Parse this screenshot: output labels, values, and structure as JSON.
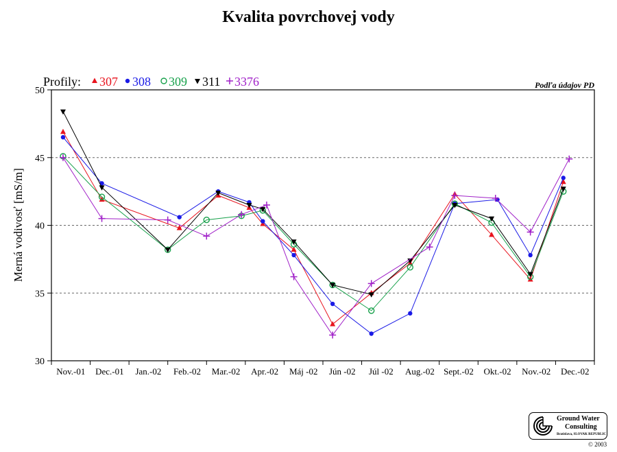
{
  "title": "Kvalita povrchovej vody",
  "source_note": "Podľa údajov PD",
  "legend": {
    "label": "Profily:",
    "entries": [
      {
        "name": "307",
        "color": "#e8141e",
        "marker": "triangle-up",
        "icon": "triangle-up-icon"
      },
      {
        "name": "308",
        "color": "#1a1ae6",
        "marker": "filled-circle",
        "icon": "circle-filled-icon"
      },
      {
        "name": "309",
        "color": "#16a04a",
        "marker": "open-circle",
        "icon": "circle-open-icon"
      },
      {
        "name": "311",
        "color": "#000000",
        "marker": "triangle-down",
        "icon": "triangle-down-icon"
      },
      {
        "name": "3376",
        "color": "#a020c8",
        "marker": "plus",
        "icon": "plus-icon"
      }
    ]
  },
  "chart_data": {
    "type": "line",
    "title": "Kvalita povrchovej vody",
    "xlabel": "",
    "ylabel": "Merná vodivosť [mS/m]",
    "ylim": [
      30,
      50
    ],
    "yticks": [
      30,
      35,
      40,
      45,
      50
    ],
    "grid": "horizontal dashed at 35, 40, 45",
    "legend_position": "top-left",
    "categories": [
      "Nov.-01",
      "Dec.-01",
      "Jan.-02",
      "Feb.-02",
      "Mar.-02",
      "Apr.-02",
      "Máj -02",
      "Jún -02",
      "Júl -02",
      "Aug.-02",
      "Sept.-02",
      "Okt.-02",
      "Nov.-02",
      "Dec.-02"
    ],
    "series": [
      {
        "name": "307",
        "points": [
          {
            "x": 0.3,
            "y": 46.9
          },
          {
            "x": 1.3,
            "y": 41.9
          },
          {
            "x": 3.3,
            "y": 39.8
          },
          {
            "x": 4.3,
            "y": 42.2
          },
          {
            "x": 5.1,
            "y": 41.3
          },
          {
            "x": 5.45,
            "y": 40.1
          },
          {
            "x": 6.25,
            "y": 38.2
          },
          {
            "x": 7.25,
            "y": 32.7
          },
          {
            "x": 8.25,
            "y": 35.0
          },
          {
            "x": 9.25,
            "y": 37.2
          },
          {
            "x": 10.4,
            "y": 42.3
          },
          {
            "x": 11.35,
            "y": 39.3
          },
          {
            "x": 12.35,
            "y": 36.0
          },
          {
            "x": 13.2,
            "y": 43.2
          }
        ]
      },
      {
        "name": "308",
        "points": [
          {
            "x": 0.3,
            "y": 46.5
          },
          {
            "x": 1.3,
            "y": 43.1
          },
          {
            "x": 3.3,
            "y": 40.6
          },
          {
            "x": 4.3,
            "y": 42.5
          },
          {
            "x": 5.1,
            "y": 41.7
          },
          {
            "x": 5.45,
            "y": 40.3
          },
          {
            "x": 6.25,
            "y": 37.8
          },
          {
            "x": 7.25,
            "y": 34.2
          },
          {
            "x": 8.25,
            "y": 32.0
          },
          {
            "x": 9.25,
            "y": 33.5
          },
          {
            "x": 10.4,
            "y": 41.6
          },
          {
            "x": 11.5,
            "y": 41.9
          },
          {
            "x": 12.35,
            "y": 37.8
          },
          {
            "x": 13.2,
            "y": 43.5
          }
        ]
      },
      {
        "name": "309",
        "points": [
          {
            "x": 0.3,
            "y": 45.1
          },
          {
            "x": 1.3,
            "y": 42.1
          },
          {
            "x": 3.0,
            "y": 38.2
          },
          {
            "x": 4.0,
            "y": 40.4
          },
          {
            "x": 4.9,
            "y": 40.7
          },
          {
            "x": 5.45,
            "y": 41.1
          },
          {
            "x": 6.25,
            "y": 38.6
          },
          {
            "x": 7.25,
            "y": 35.6
          },
          {
            "x": 8.25,
            "y": 33.7
          },
          {
            "x": 9.25,
            "y": 36.9
          },
          {
            "x": 10.4,
            "y": 41.6
          },
          {
            "x": 11.35,
            "y": 40.2
          },
          {
            "x": 12.35,
            "y": 36.2
          },
          {
            "x": 13.2,
            "y": 42.5
          }
        ]
      },
      {
        "name": "311",
        "points": [
          {
            "x": 0.3,
            "y": 48.4
          },
          {
            "x": 1.3,
            "y": 42.8
          },
          {
            "x": 3.0,
            "y": 38.2
          },
          {
            "x": 4.3,
            "y": 42.4
          },
          {
            "x": 5.1,
            "y": 41.5
          },
          {
            "x": 5.45,
            "y": 41.2
          },
          {
            "x": 6.25,
            "y": 38.8
          },
          {
            "x": 7.25,
            "y": 35.6
          },
          {
            "x": 8.25,
            "y": 34.9
          },
          {
            "x": 9.25,
            "y": 37.4
          },
          {
            "x": 10.4,
            "y": 41.5
          },
          {
            "x": 11.35,
            "y": 40.5
          },
          {
            "x": 12.35,
            "y": 36.4
          },
          {
            "x": 13.2,
            "y": 42.7
          }
        ]
      },
      {
        "name": "3376",
        "points": [
          {
            "x": 0.3,
            "y": 45.0
          },
          {
            "x": 1.3,
            "y": 40.5
          },
          {
            "x": 3.0,
            "y": 40.4
          },
          {
            "x": 4.0,
            "y": 39.2
          },
          {
            "x": 4.9,
            "y": 40.8
          },
          {
            "x": 5.55,
            "y": 41.5
          },
          {
            "x": 6.25,
            "y": 36.2
          },
          {
            "x": 7.25,
            "y": 31.9
          },
          {
            "x": 8.25,
            "y": 35.7
          },
          {
            "x": 9.75,
            "y": 38.4
          },
          {
            "x": 10.4,
            "y": 42.2
          },
          {
            "x": 11.45,
            "y": 42.0
          },
          {
            "x": 12.35,
            "y": 39.5
          },
          {
            "x": 13.35,
            "y": 44.9
          }
        ]
      }
    ]
  },
  "logo": {
    "line1": "Ground Water",
    "line2": "Consulting",
    "line3": "Bratislava, SLOVAK REPUBLIC",
    "icon": "gwc-logo-icon"
  },
  "copyright": "© 2003"
}
